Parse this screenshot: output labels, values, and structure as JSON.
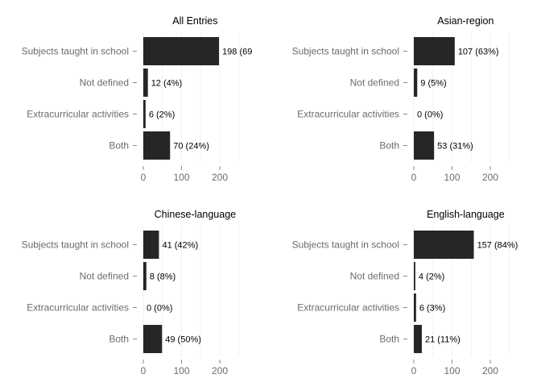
{
  "chart_data": [
    {
      "type": "bar",
      "title": "All Entries",
      "categories": [
        "Subjects taught in school",
        "Not defined",
        "Extracurricular activities",
        "Both"
      ],
      "values": [
        198,
        12,
        6,
        70
      ],
      "labels": [
        "198 (69",
        "12 (4%)",
        "6 (2%)",
        "70 (24%)"
      ],
      "xlim": [
        0,
        250
      ],
      "ticks": [
        "0",
        "100",
        "200"
      ]
    },
    {
      "type": "bar",
      "title": "Asian-region",
      "categories": [
        "Subjects taught in school",
        "Not defined",
        "Extracurricular activities",
        "Both"
      ],
      "values": [
        107,
        9,
        0,
        53
      ],
      "labels": [
        "107 (63%)",
        "9 (5%)",
        "0 (0%)",
        "53 (31%)"
      ],
      "xlim": [
        0,
        250
      ],
      "ticks": [
        "0",
        "100",
        "200"
      ]
    },
    {
      "type": "bar",
      "title": "Chinese-language",
      "categories": [
        "Subjects taught in school",
        "Not defined",
        "Extracurricular activities",
        "Both"
      ],
      "values": [
        41,
        8,
        0,
        49
      ],
      "labels": [
        "41 (42%)",
        "8 (8%)",
        "0 (0%)",
        "49 (50%)"
      ],
      "xlim": [
        0,
        250
      ],
      "ticks": [
        "0",
        "100",
        "200"
      ]
    },
    {
      "type": "bar",
      "title": "English-language",
      "categories": [
        "Subjects taught in school",
        "Not defined",
        "Extracurricular activities",
        "Both"
      ],
      "values": [
        157,
        4,
        6,
        21
      ],
      "labels": [
        "157 (84%)",
        "4 (2%)",
        "6 (3%)",
        "21 (11%)"
      ],
      "xlim": [
        0,
        250
      ],
      "ticks": [
        "0",
        "100",
        "200"
      ]
    }
  ],
  "colors": {
    "bar": "#262626",
    "grid": "#f2f2f2",
    "text": "#6b6b6b"
  }
}
